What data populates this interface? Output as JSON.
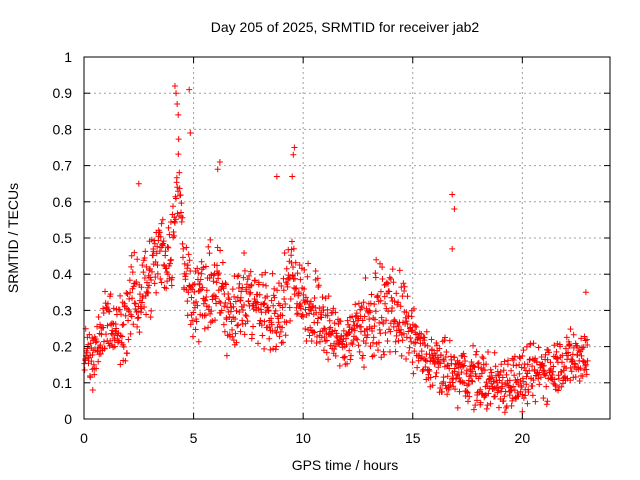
{
  "chart_data": {
    "type": "scatter",
    "title": "Day 205 of 2025, SRMTID for receiver jab2",
    "xlabel": "GPS time / hours",
    "ylabel": "SRMTID / TECUs",
    "xlim": [
      0,
      24
    ],
    "ylim": [
      0,
      1
    ],
    "xticks": [
      0,
      5,
      10,
      15,
      20
    ],
    "xtick_labels": [
      "0",
      "5",
      "10",
      "15",
      "20"
    ],
    "yticks": [
      0,
      0.1,
      0.2,
      0.3,
      0.4,
      0.5,
      0.6,
      0.7,
      0.8,
      0.9,
      1
    ],
    "ytick_labels": [
      "0",
      "0.1",
      "0.2",
      "0.3",
      "0.4",
      "0.5",
      "0.6",
      "0.7",
      "0.8",
      "0.9",
      "1"
    ],
    "grid": true,
    "marker": "+",
    "colors": {
      "marker": "#ff0000",
      "grid": "#a0a0a0",
      "axis": "#000000"
    },
    "series": [
      {
        "name": "SRMTID",
        "x_range": [
          0,
          23.0
        ],
        "trend": [
          [
            0.0,
            0.17
          ],
          [
            0.5,
            0.19
          ],
          [
            1.0,
            0.27
          ],
          [
            1.5,
            0.23
          ],
          [
            2.0,
            0.3
          ],
          [
            2.5,
            0.35
          ],
          [
            3.0,
            0.4
          ],
          [
            3.5,
            0.47
          ],
          [
            4.0,
            0.45
          ],
          [
            4.3,
            0.7
          ],
          [
            4.6,
            0.4
          ],
          [
            5.0,
            0.35
          ],
          [
            5.5,
            0.33
          ],
          [
            6.0,
            0.38
          ],
          [
            6.5,
            0.3
          ],
          [
            7.0,
            0.32
          ],
          [
            7.5,
            0.33
          ],
          [
            8.0,
            0.31
          ],
          [
            8.5,
            0.28
          ],
          [
            9.0,
            0.3
          ],
          [
            9.5,
            0.42
          ],
          [
            10.0,
            0.33
          ],
          [
            10.5,
            0.3
          ],
          [
            11.0,
            0.27
          ],
          [
            11.5,
            0.22
          ],
          [
            12.0,
            0.22
          ],
          [
            12.5,
            0.26
          ],
          [
            13.0,
            0.27
          ],
          [
            13.5,
            0.3
          ],
          [
            14.0,
            0.3
          ],
          [
            14.5,
            0.28
          ],
          [
            15.0,
            0.22
          ],
          [
            15.5,
            0.17
          ],
          [
            16.0,
            0.15
          ],
          [
            16.5,
            0.13
          ],
          [
            17.0,
            0.12
          ],
          [
            17.5,
            0.12
          ],
          [
            18.0,
            0.11
          ],
          [
            18.5,
            0.1
          ],
          [
            19.0,
            0.1
          ],
          [
            19.5,
            0.11
          ],
          [
            20.0,
            0.11
          ],
          [
            20.5,
            0.12
          ],
          [
            21.0,
            0.14
          ],
          [
            21.5,
            0.15
          ],
          [
            22.0,
            0.16
          ],
          [
            22.5,
            0.17
          ],
          [
            23.0,
            0.18
          ]
        ],
        "spread": 0.08,
        "notable_points": [
          [
            4.15,
            0.92
          ],
          [
            4.2,
            0.9
          ],
          [
            4.25,
            0.87
          ],
          [
            4.3,
            0.84
          ],
          [
            4.8,
            0.91
          ],
          [
            4.85,
            0.79
          ],
          [
            6.2,
            0.71
          ],
          [
            6.1,
            0.69
          ],
          [
            9.6,
            0.75
          ],
          [
            9.55,
            0.73
          ],
          [
            9.5,
            0.67
          ],
          [
            8.8,
            0.67
          ],
          [
            2.5,
            0.65
          ],
          [
            16.8,
            0.62
          ],
          [
            16.9,
            0.58
          ],
          [
            16.8,
            0.47
          ],
          [
            22.9,
            0.35
          ],
          [
            20.0,
            0.02
          ],
          [
            0.4,
            0.08
          ]
        ]
      }
    ]
  }
}
